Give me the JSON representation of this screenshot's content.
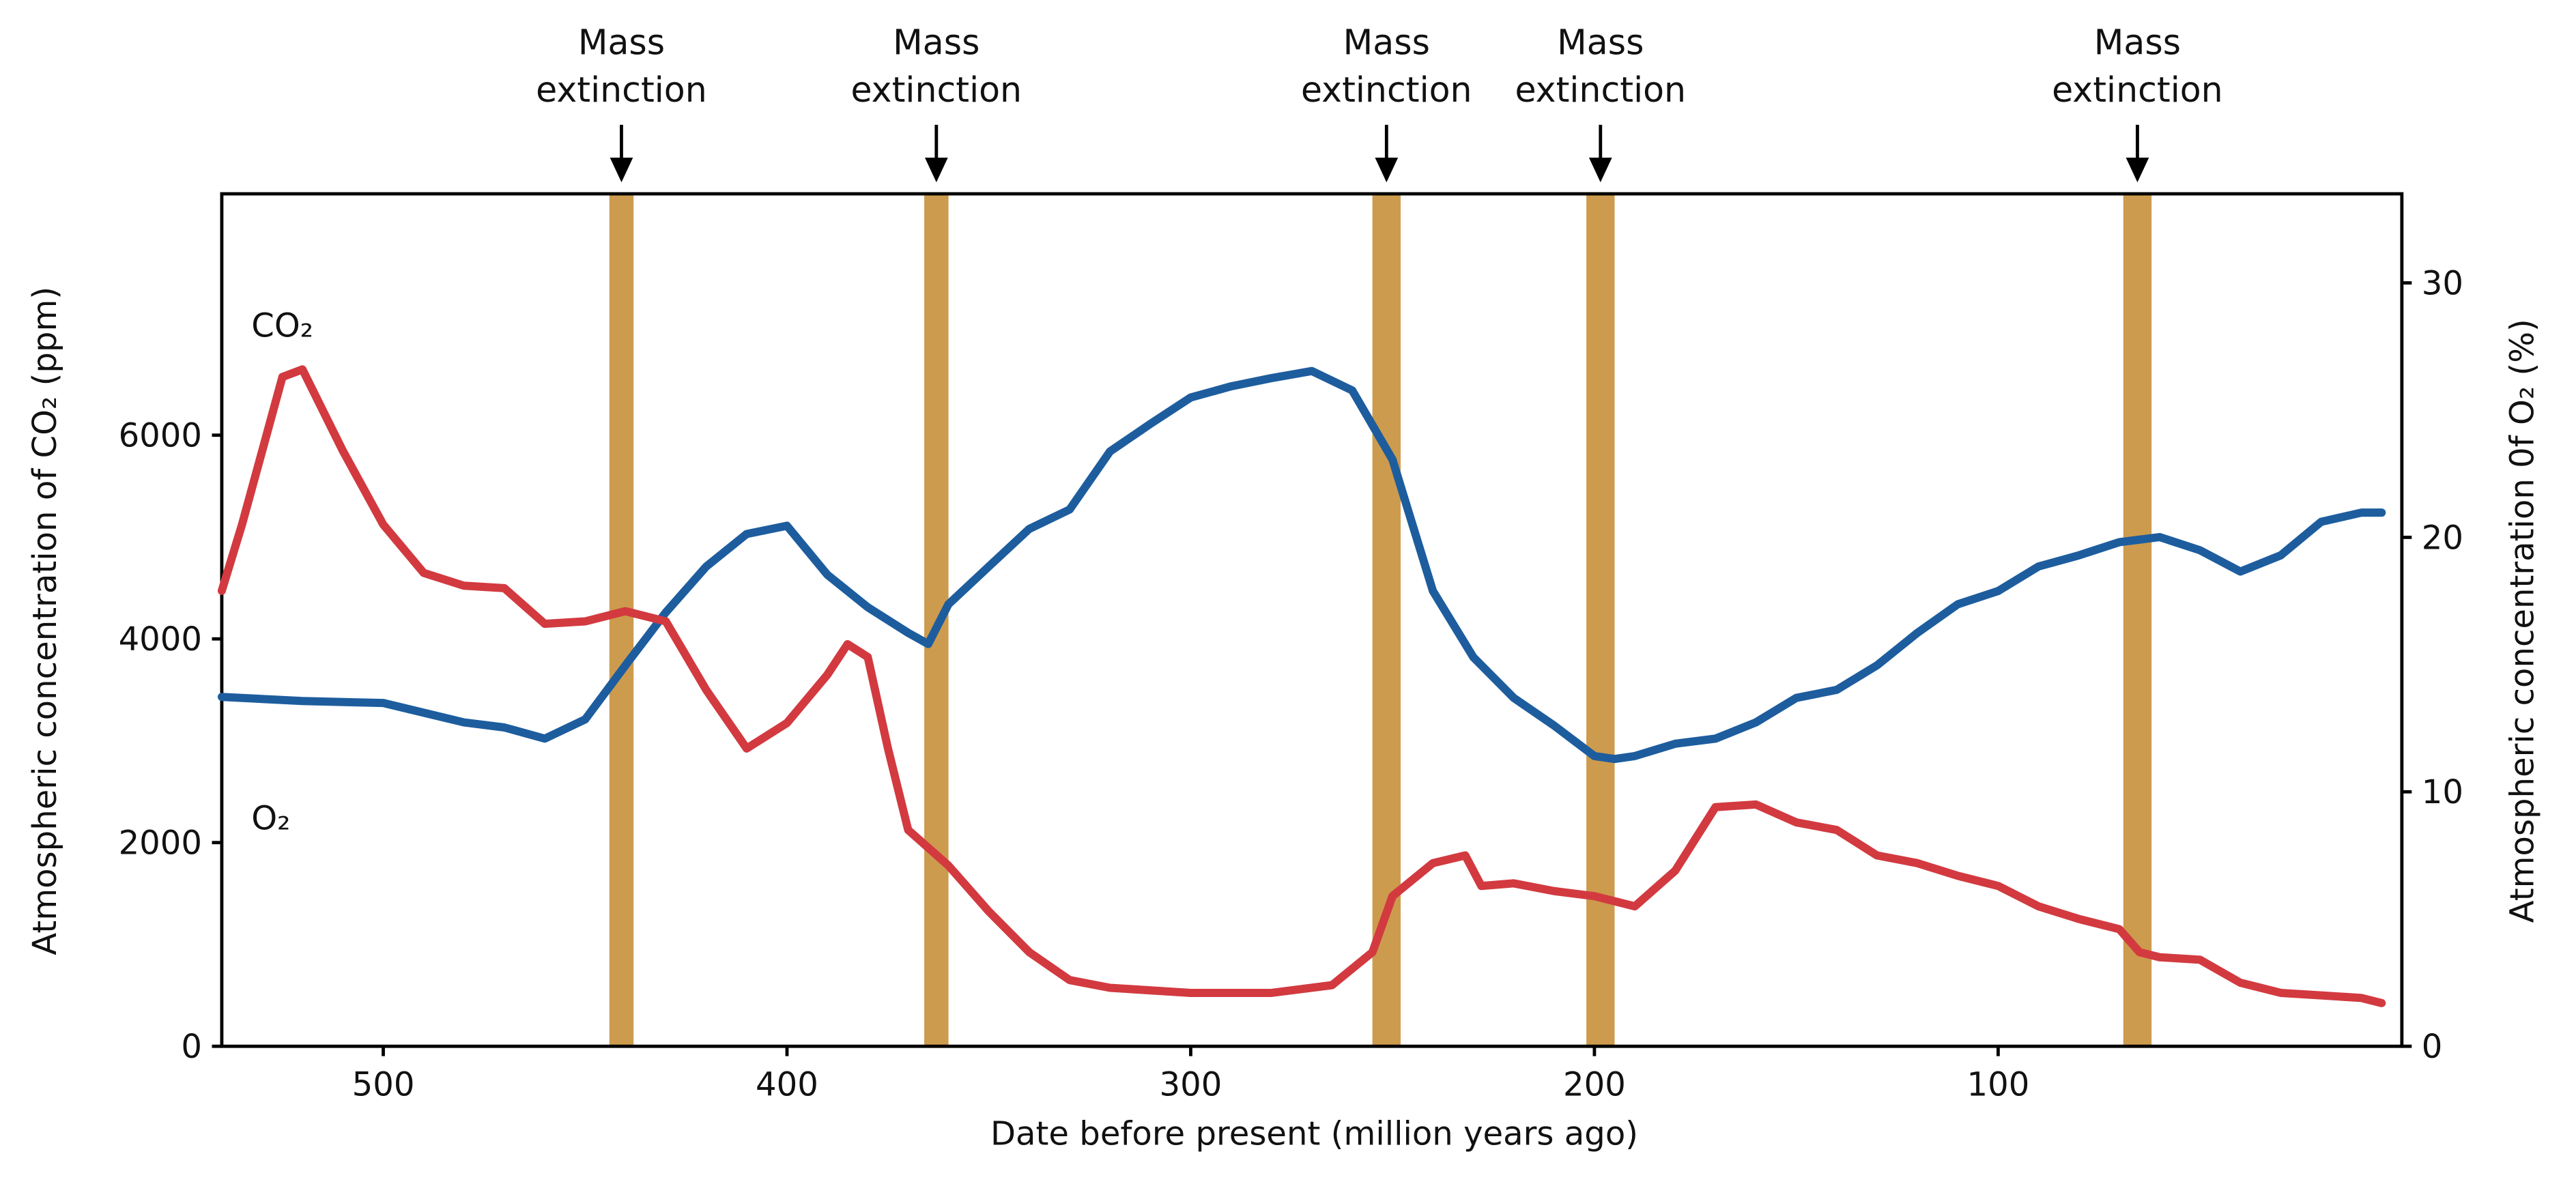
{
  "chart_data": {
    "type": "line",
    "x_label": "Date before present (million years ago)",
    "y_label": "Atmospheric concentration of CO₂ (ppm)",
    "y2_label": "Atmospheric concentration 0f O₂ (%)",
    "xlim": [
      540,
      0
    ],
    "xticks": [
      500,
      400,
      300,
      200,
      100
    ],
    "ylim": [
      0,
      8370
    ],
    "yticks": [
      0,
      2000,
      4000,
      6000
    ],
    "y2lim": [
      0,
      33.5
    ],
    "y2ticks": [
      0,
      10,
      20,
      30
    ],
    "series": [
      {
        "name": "CO₂",
        "color": "#1d5d9e",
        "axis": "y",
        "x": [
          540,
          520,
          500,
          480,
          470,
          460,
          450,
          440,
          430,
          420,
          410,
          400,
          390,
          380,
          370,
          365,
          360,
          350,
          340,
          330,
          320,
          310,
          300,
          290,
          280,
          270,
          260,
          250,
          240,
          230,
          220,
          210,
          200,
          195,
          190,
          180,
          170,
          160,
          150,
          140,
          130,
          120,
          110,
          100,
          90,
          80,
          70,
          60,
          50,
          40,
          30,
          20,
          10,
          5
        ],
        "values": [
          3430,
          3390,
          3370,
          3180,
          3130,
          3020,
          3210,
          3740,
          4260,
          4710,
          5030,
          5110,
          4630,
          4310,
          4060,
          3950,
          4340,
          4710,
          5080,
          5270,
          5840,
          6110,
          6370,
          6480,
          6560,
          6630,
          6440,
          5760,
          4470,
          3820,
          3420,
          3150,
          2850,
          2820,
          2850,
          2970,
          3020,
          3180,
          3420,
          3500,
          3740,
          4060,
          4340,
          4470,
          4710,
          4820,
          4950,
          5000,
          4870,
          4660,
          4820,
          5150,
          5240,
          5240
        ]
      },
      {
        "name": "O₂",
        "color": "#d23a40",
        "axis": "y2",
        "x": [
          540,
          535,
          530,
          525,
          520,
          515,
          510,
          500,
          490,
          480,
          470,
          460,
          450,
          440,
          430,
          420,
          410,
          400,
          390,
          385,
          380,
          375,
          370,
          360,
          350,
          340,
          330,
          320,
          300,
          280,
          265,
          255,
          250,
          240,
          232,
          228,
          220,
          210,
          200,
          190,
          180,
          170,
          160,
          150,
          140,
          130,
          120,
          110,
          100,
          90,
          80,
          70,
          65,
          60,
          50,
          40,
          30,
          20,
          10,
          5
        ],
        "values": [
          17.9,
          20.5,
          23.4,
          26.3,
          26.6,
          25.0,
          23.4,
          20.5,
          18.6,
          18.1,
          18.0,
          16.6,
          16.7,
          17.1,
          16.7,
          14.0,
          11.7,
          12.7,
          14.6,
          15.8,
          15.3,
          11.7,
          8.5,
          7.1,
          5.3,
          3.7,
          2.6,
          2.3,
          2.1,
          2.1,
          2.4,
          3.7,
          5.9,
          7.2,
          7.5,
          6.3,
          6.4,
          6.1,
          5.9,
          5.5,
          6.9,
          9.4,
          9.5,
          8.8,
          8.5,
          7.5,
          7.2,
          6.7,
          6.3,
          5.5,
          5.0,
          4.6,
          3.7,
          3.5,
          3.4,
          2.5,
          2.1,
          2.0,
          1.9,
          1.7
        ]
      }
    ],
    "extinctions": [
      {
        "label": "Mass extinction",
        "start": 444,
        "end": 438
      },
      {
        "label": "Mass extinction",
        "start": 366,
        "end": 360
      },
      {
        "label": "Mass extinction",
        "start": 255,
        "end": 248
      },
      {
        "label": "Mass extinction",
        "start": 202,
        "end": 195
      },
      {
        "label": "Mass extinction",
        "start": 69,
        "end": 62
      }
    ]
  }
}
